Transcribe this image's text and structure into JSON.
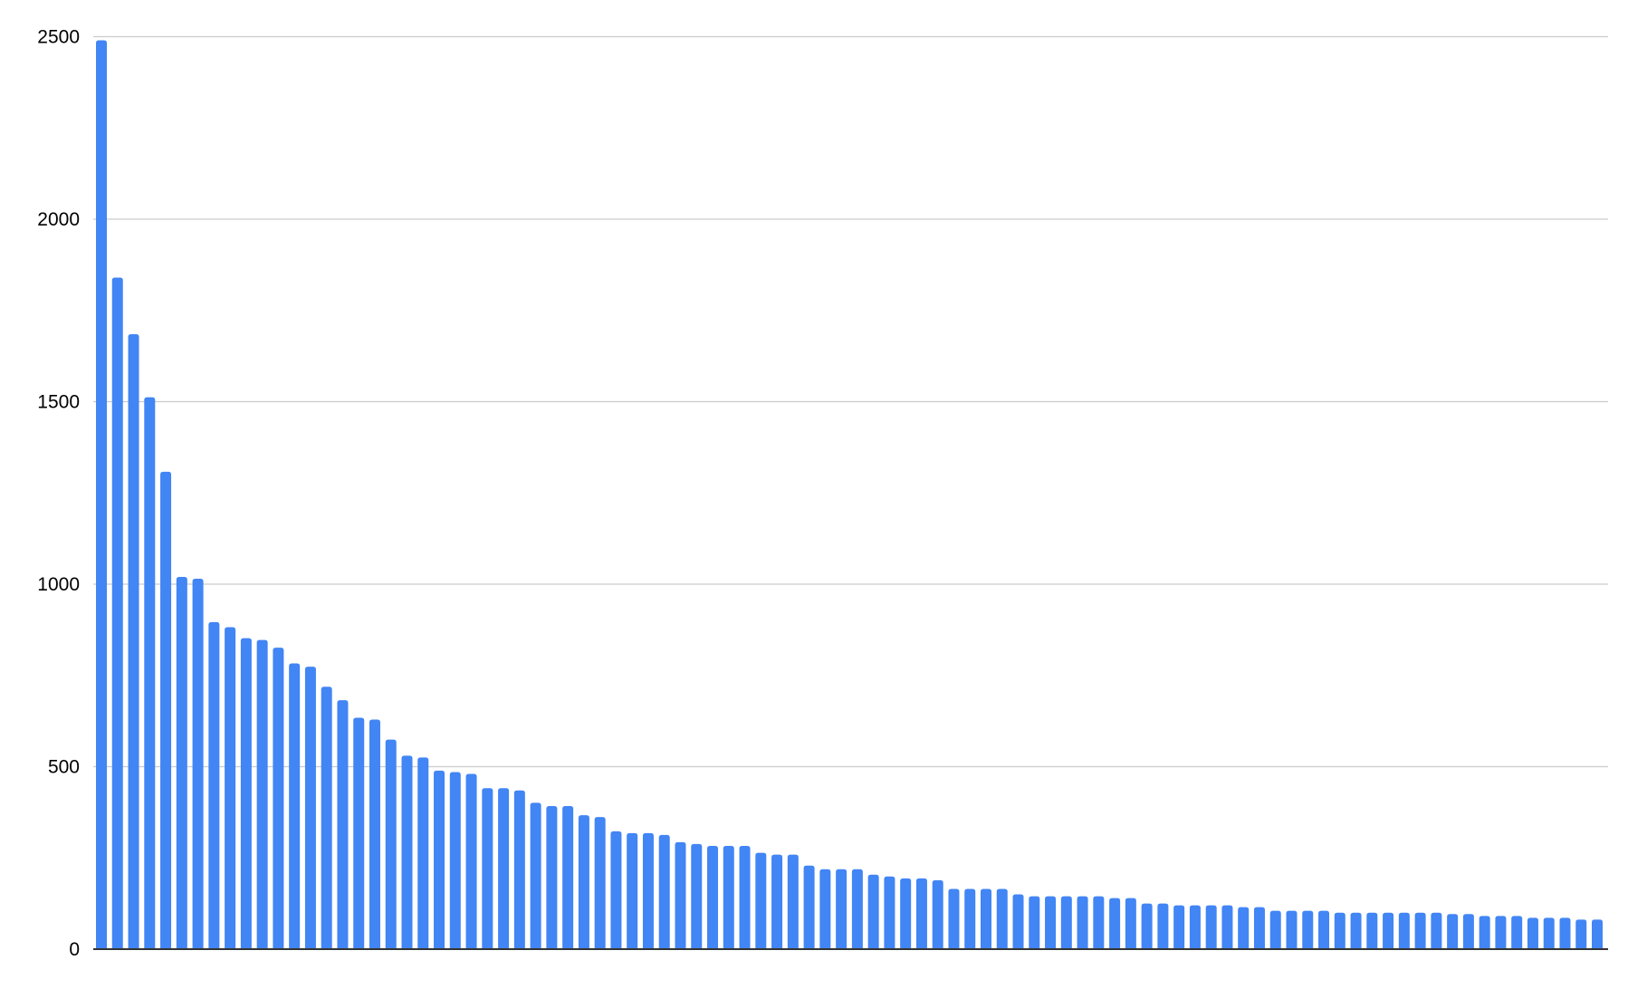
{
  "chart_data": {
    "type": "bar",
    "title": "",
    "xlabel": "",
    "ylabel": "",
    "ylim": [
      0,
      2500
    ],
    "yticks": [
      "0",
      "500",
      "1000",
      "1500",
      "2000",
      "2500"
    ],
    "grid": true,
    "legend": "none",
    "bar_color": "#4285f4",
    "grid_color": "#cccccc",
    "axis_color": "#333333",
    "values": [
      2490,
      1840,
      1685,
      1512,
      1308,
      1020,
      1015,
      896,
      882,
      852,
      847,
      826,
      783,
      774,
      719,
      682,
      634,
      629,
      574,
      530,
      525,
      489,
      485,
      480,
      441,
      441,
      435,
      401,
      392,
      392,
      367,
      362,
      323,
      318,
      318,
      313,
      293,
      288,
      283,
      283,
      283,
      264,
      259,
      259,
      229,
      219,
      219,
      219,
      204,
      199,
      194,
      194,
      189,
      165,
      165,
      165,
      165,
      150,
      145,
      145,
      145,
      145,
      145,
      140,
      140,
      125,
      125,
      120,
      120,
      120,
      120,
      115,
      115,
      105,
      105,
      105,
      105,
      100,
      100,
      100,
      100,
      100,
      100,
      100,
      96,
      96,
      91,
      91,
      91,
      86,
      86,
      86,
      81,
      81
    ]
  }
}
